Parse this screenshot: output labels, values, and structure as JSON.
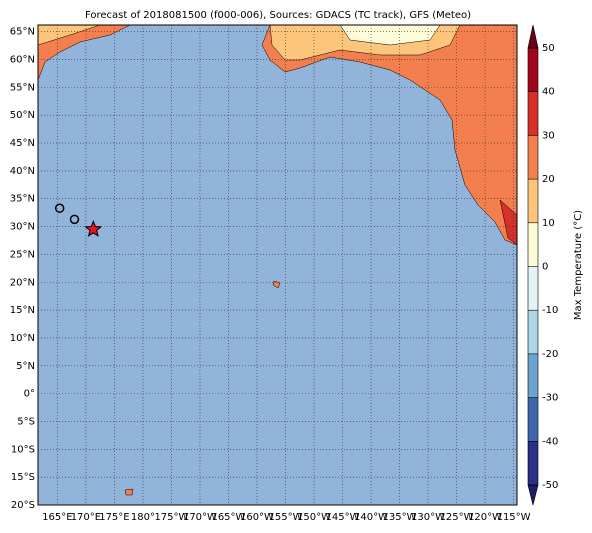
{
  "chart_data": {
    "type": "map",
    "title": "Forecast of 2018081500 (f000-006), Sources: GDACS (TC track), GFS (Meteo)",
    "xlim": [
      161.6,
      245.6
    ],
    "ylim": [
      -20,
      66.2
    ],
    "xticks": [
      {
        "value": 165,
        "label": "165°E"
      },
      {
        "value": 170,
        "label": "170°E"
      },
      {
        "value": 175,
        "label": "175°E"
      },
      {
        "value": 180,
        "label": "180°"
      },
      {
        "value": 185,
        "label": "175°W"
      },
      {
        "value": 190,
        "label": "170°W"
      },
      {
        "value": 195,
        "label": "165°W"
      },
      {
        "value": 200,
        "label": "160°W"
      },
      {
        "value": 205,
        "label": "155°W"
      },
      {
        "value": 210,
        "label": "150°W"
      },
      {
        "value": 215,
        "label": "145°W"
      },
      {
        "value": 220,
        "label": "140°W"
      },
      {
        "value": 225,
        "label": "135°W"
      },
      {
        "value": 230,
        "label": "130°W"
      },
      {
        "value": 235,
        "label": "125°W"
      },
      {
        "value": 240,
        "label": "120°W"
      },
      {
        "value": 245,
        "label": "115°W"
      }
    ],
    "yticks": [
      {
        "value": 65,
        "label": "65°N"
      },
      {
        "value": 60,
        "label": "60°N"
      },
      {
        "value": 55,
        "label": "55°N"
      },
      {
        "value": 50,
        "label": "50°N"
      },
      {
        "value": 45,
        "label": "45°N"
      },
      {
        "value": 40,
        "label": "40°N"
      },
      {
        "value": 35,
        "label": "35°N"
      },
      {
        "value": 30,
        "label": "30°N"
      },
      {
        "value": 25,
        "label": "25°N"
      },
      {
        "value": 20,
        "label": "20°N"
      },
      {
        "value": 15,
        "label": "15°N"
      },
      {
        "value": 10,
        "label": "10°N"
      },
      {
        "value": 5,
        "label": "5°N"
      },
      {
        "value": 0,
        "label": "0°"
      },
      {
        "value": -5,
        "label": "5°S"
      },
      {
        "value": -10,
        "label": "10°S"
      },
      {
        "value": -15,
        "label": "15°S"
      },
      {
        "value": -20,
        "label": "20°S"
      }
    ],
    "grid": true,
    "colorbar": {
      "label": "Max Temperature (°C)",
      "lim": [
        -50,
        50
      ],
      "ticks": [
        50,
        40,
        30,
        20,
        10,
        0,
        -10,
        -20,
        -30,
        -40,
        -50
      ],
      "colors": [
        "#2a2f8a",
        "#3f67ac",
        "#6da3cc",
        "#aed5e6",
        "#e4f3f6",
        "#fefbd8",
        "#fdc57b",
        "#f47f4e",
        "#d7302a",
        "#a1061f"
      ],
      "over": "#6b0017",
      "under": "#1b1d6b"
    },
    "track": {
      "lon": [
        165.4,
        168,
        171.3
      ],
      "lat": [
        33.3,
        31.3,
        29.5
      ]
    }
  }
}
